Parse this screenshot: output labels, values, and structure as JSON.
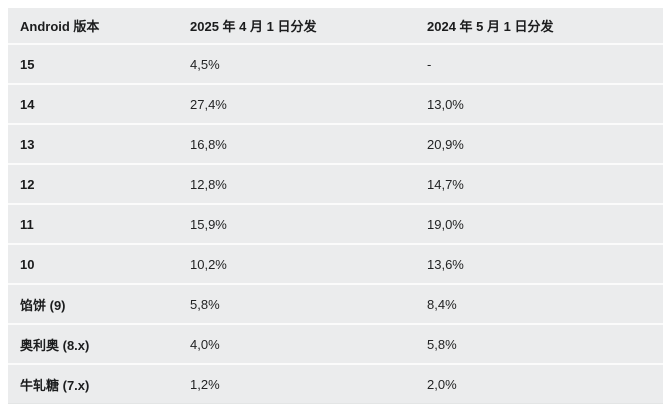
{
  "table": {
    "columns": [
      {
        "label": "Android 版本"
      },
      {
        "label": "2025 年 4 月 1 日分发"
      },
      {
        "label": "2024 年 5 月 1 日分发"
      }
    ],
    "rows": [
      {
        "version": "15",
        "dist_2025": "4,5%",
        "dist_2024": "-"
      },
      {
        "version": "14",
        "dist_2025": "27,4%",
        "dist_2024": "13,0%"
      },
      {
        "version": "13",
        "dist_2025": "16,8%",
        "dist_2024": "20,9%"
      },
      {
        "version": "12",
        "dist_2025": "12,8%",
        "dist_2024": "14,7%"
      },
      {
        "version": "11",
        "dist_2025": "15,9%",
        "dist_2024": "19,0%"
      },
      {
        "version": "10",
        "dist_2025": "10,2%",
        "dist_2024": "13,6%"
      },
      {
        "version": "馅饼 (9)",
        "dist_2025": "5,8%",
        "dist_2024": "8,4%"
      },
      {
        "version": "奥利奥 (8.x)",
        "dist_2025": "4,0%",
        "dist_2024": "5,8%"
      },
      {
        "version": "牛轧糖 (7.x)",
        "dist_2025": "1,2%",
        "dist_2024": "2,0%"
      }
    ]
  },
  "chart_data": {
    "type": "table",
    "title": "",
    "categories": [
      "15",
      "14",
      "13",
      "12",
      "11",
      "10",
      "馅饼 (9)",
      "奥利奥 (8.x)",
      "牛轧糖 (7.x)"
    ],
    "series": [
      {
        "name": "2025 年 4 月 1 日分发",
        "values": [
          4.5,
          27.4,
          16.8,
          12.8,
          15.9,
          10.2,
          5.8,
          4.0,
          1.2
        ]
      },
      {
        "name": "2024 年 5 月 1 日分发",
        "values": [
          null,
          13.0,
          20.9,
          14.7,
          19.0,
          13.6,
          8.4,
          5.8,
          2.0
        ]
      }
    ],
    "unit": "%",
    "missing_value_marker": "-",
    "decimal_separator": ","
  },
  "colors": {
    "page_background": "#ffffff",
    "table_background": "#ebeced",
    "row_separator": "#fbfbfb",
    "header_text": "#1b1c1d",
    "value_text": "#222324"
  }
}
